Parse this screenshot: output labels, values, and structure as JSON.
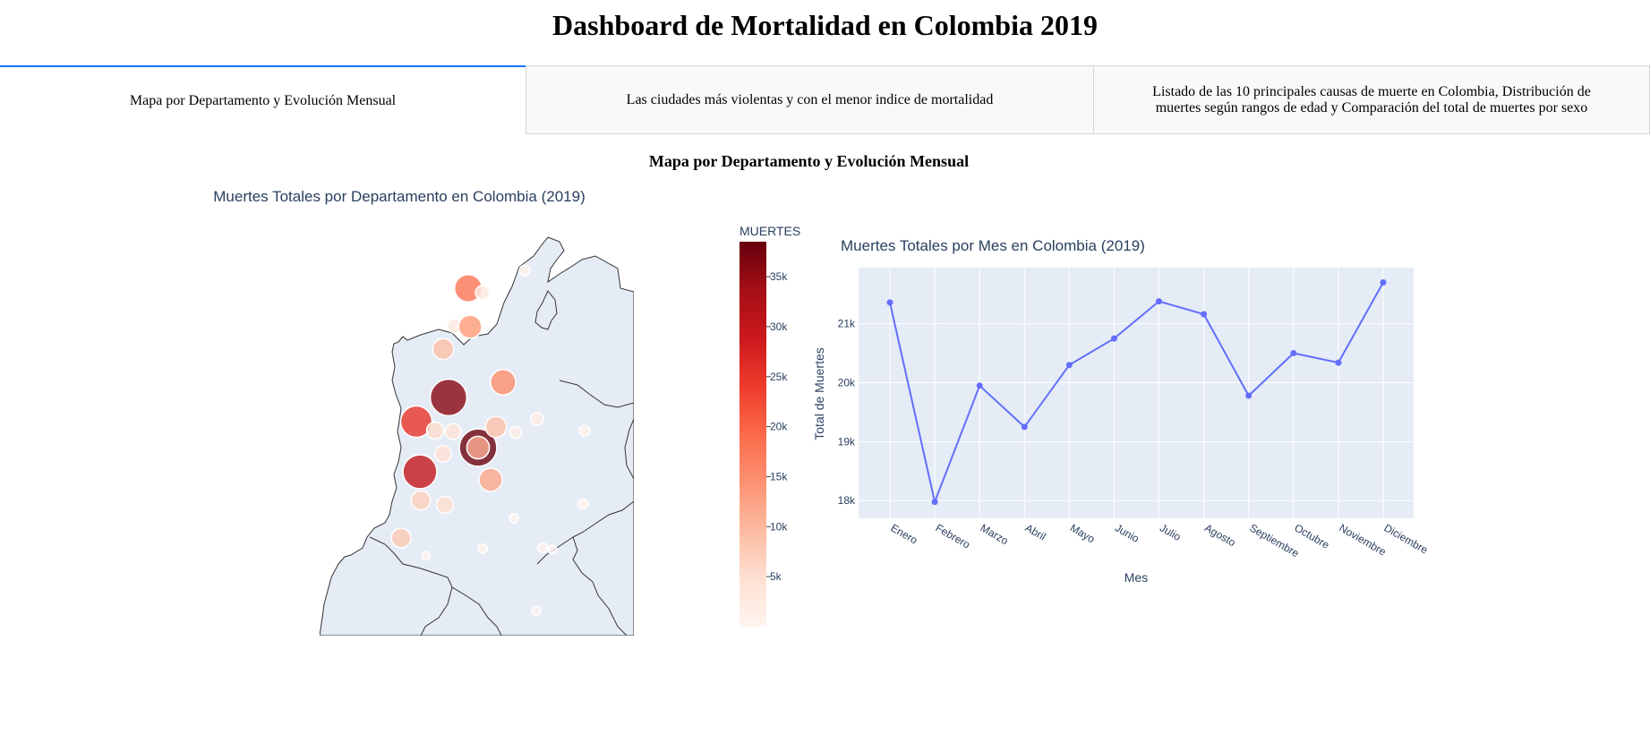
{
  "header": {
    "title": "Dashboard de Mortalidad en Colombia 2019"
  },
  "tabs": [
    {
      "label": "Mapa por Departamento y Evolución Mensual",
      "active": true
    },
    {
      "label": "Las ciudades más violentas y con el menor indice de mortalidad",
      "active": false
    },
    {
      "label": "Listado de las 10 principales causas de muerte en Colombia, Distribución de muertes según rangos de edad y Comparación del total de muertes por sexo",
      "active": false
    }
  ],
  "section": {
    "heading": "Mapa por Departamento y Evolución Mensual"
  },
  "colors": {
    "accent": "#1975fa",
    "line": "#636efa",
    "plot_bg": "#e5ecf6",
    "map_fill": "#e5ecf6"
  },
  "chart_data": [
    {
      "type": "scatter",
      "title": "Muertes Totales por Departamento en Colombia (2019)",
      "colorbar": {
        "title": "MUERTES",
        "ticks": [
          "5k",
          "10k",
          "15k",
          "20k",
          "25k",
          "30k",
          "35k"
        ],
        "range": [
          0,
          38500
        ],
        "scale": "Reds"
      },
      "bubbles": [
        {
          "value": 18000
        },
        {
          "value": 3000
        },
        {
          "value": 1000
        },
        {
          "value": 9000
        },
        {
          "value": 3000
        },
        {
          "value": 4000
        },
        {
          "value": 10000
        },
        {
          "value": 12000
        },
        {
          "value": 15000
        },
        {
          "value": 36000
        },
        {
          "value": 25000
        },
        {
          "value": 5000
        },
        {
          "value": 4000
        },
        {
          "value": 4500
        },
        {
          "value": 38000
        },
        {
          "value": 11000
        },
        {
          "value": 9000
        },
        {
          "value": 30000
        },
        {
          "value": 7000
        },
        {
          "value": 5000
        },
        {
          "value": 7500
        },
        {
          "value": 12000
        },
        {
          "value": 2000
        },
        {
          "value": 1500
        },
        {
          "value": 1000
        },
        {
          "value": 800
        },
        {
          "value": 500
        },
        {
          "value": 700
        },
        {
          "value": 600
        },
        {
          "value": 400
        },
        {
          "value": 300
        },
        {
          "value": 500
        }
      ]
    },
    {
      "type": "line",
      "title": "Muertes Totales por Mes en Colombia (2019)",
      "xlabel": "Mes",
      "ylabel": "Total de Muertes",
      "categories": [
        "Enero",
        "Febrero",
        "Marzo",
        "Abril",
        "Mayo",
        "Junio",
        "Julio",
        "Agosto",
        "Septiembre",
        "Octubre",
        "Noviembre",
        "Diciembre"
      ],
      "values": [
        21360,
        17980,
        19950,
        19250,
        20300,
        20750,
        21380,
        21160,
        19780,
        20500,
        20340,
        21700
      ],
      "ylim": [
        17700,
        21950
      ],
      "yticks": [
        18000,
        19000,
        20000,
        21000
      ],
      "ytick_labels": [
        "18k",
        "19k",
        "20k",
        "21k"
      ]
    }
  ]
}
